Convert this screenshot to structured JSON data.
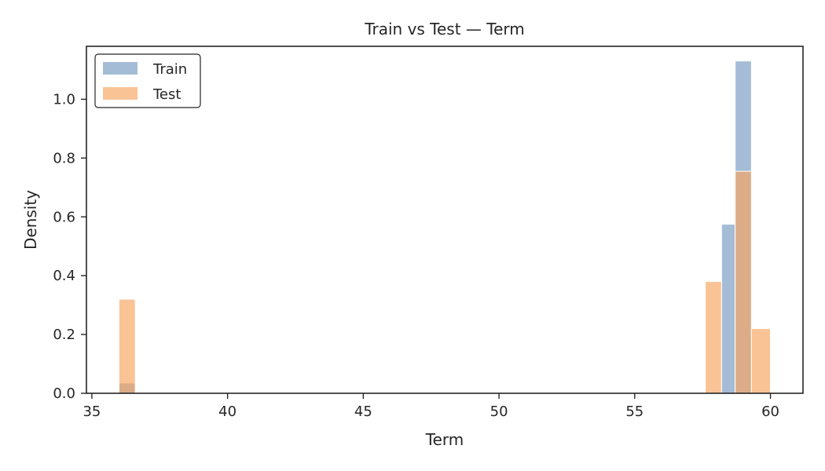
{
  "chart_data": {
    "type": "bar",
    "title": "Train vs Test — Term",
    "xlabel": "Term",
    "ylabel": "Density",
    "xlim": [
      34.8,
      61.2
    ],
    "ylim": [
      0,
      1.18
    ],
    "xticks": [
      35,
      40,
      45,
      50,
      55,
      60
    ],
    "yticks": [
      0.0,
      0.2,
      0.4,
      0.6,
      0.8,
      1.0
    ],
    "grid": false,
    "legend_position": "top-left",
    "series": [
      {
        "name": "Train",
        "color": "#7f9fc4",
        "opacity": 0.7,
        "bins": [
          {
            "x0": 36.0,
            "x1": 36.6,
            "value": 0.035
          },
          {
            "x0": 57.6,
            "x1": 58.2,
            "value": 0.0
          },
          {
            "x0": 58.2,
            "x1": 58.7,
            "value": 0.575
          },
          {
            "x0": 58.7,
            "x1": 59.3,
            "value": 1.13
          }
        ]
      },
      {
        "name": "Test",
        "color": "#f7a35c",
        "opacity": 0.65,
        "bins": [
          {
            "x0": 36.0,
            "x1": 36.6,
            "value": 0.32
          },
          {
            "x0": 57.6,
            "x1": 58.2,
            "value": 0.38
          },
          {
            "x0": 58.7,
            "x1": 59.3,
            "value": 0.755
          },
          {
            "x0": 59.3,
            "x1": 60.0,
            "value": 0.22
          }
        ]
      }
    ]
  }
}
